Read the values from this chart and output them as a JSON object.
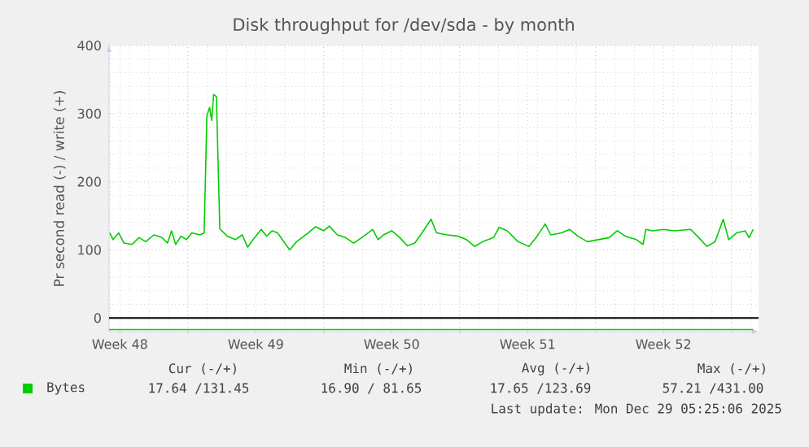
{
  "chart_data": {
    "type": "line",
    "title": "Disk throughput for /dev/sda - by month",
    "ylabel": "Pr second read (-) / write (+)",
    "xlim": [
      "2025-11-26T22:35",
      "2025-12-30T09:35"
    ],
    "ylim": [
      -20,
      400
    ],
    "xticks": [
      {
        "value": "2025-12-01",
        "label": null
      },
      {
        "value": "2025-12-08",
        "label": null
      },
      {
        "value": "2025-12-15",
        "label": null
      },
      {
        "value": "2025-12-22",
        "label": null
      },
      {
        "value": "2025-12-29",
        "label": null
      },
      {
        "value": "2025-11-27T12:00",
        "label": "Week 48"
      },
      {
        "value": "2025-12-04T12:00",
        "label": "Week 49"
      },
      {
        "value": "2025-12-11T12:00",
        "label": "Week 50"
      },
      {
        "value": "2025-12-18T12:00",
        "label": "Week 51"
      },
      {
        "value": "2025-12-25T12:00",
        "label": "Week 52"
      }
    ],
    "yticks": [
      0,
      100,
      200,
      300,
      400
    ],
    "grid": true,
    "legend": "bottom",
    "marker": "none",
    "line_style": "solid",
    "series": [
      {
        "name": "Bytes",
        "color": "#00cc00",
        "x": [
          "2025-11-26T23:24",
          "2025-11-27T03:36",
          "2025-11-27T10:20",
          "2025-11-27T17:00",
          "2025-11-28T03:05",
          "2025-11-28T11:30",
          "2025-11-28T19:55",
          "2025-11-29T06:00",
          "2025-11-29T16:05",
          "2025-11-29T22:50",
          "2025-11-30T03:50",
          "2025-11-30T08:55",
          "2025-11-30T15:35",
          "2025-11-30T22:20",
          "2025-12-01T05:00",
          "2025-12-01T15:05",
          "2025-12-01T20:10",
          "2025-12-01T23:30",
          "2025-12-02T02:55",
          "2025-12-02T05:25",
          "2025-12-02T07:55",
          "2025-12-02T11:15",
          "2025-12-02T15:30",
          "2025-12-03T00:45",
          "2025-12-03T10:50",
          "2025-12-03T19:10",
          "2025-12-04T01:55",
          "2025-12-04T08:40",
          "2025-12-04T18:45",
          "2025-12-05T01:25",
          "2025-12-05T08:10",
          "2025-12-05T14:55",
          "2025-12-06T01:00",
          "2025-12-06T06:00",
          "2025-12-06T14:25",
          "2025-12-06T21:05",
          "2025-12-07T03:50",
          "2025-12-07T13:55",
          "2025-12-08T00:00",
          "2025-12-08T06:45",
          "2025-12-08T16:50",
          "2025-12-09T02:55",
          "2025-12-09T13:00",
          "2025-12-09T23:00",
          "2025-12-10T12:30",
          "2025-12-10T19:10",
          "2025-12-11T01:55",
          "2025-12-11T12:00",
          "2025-12-11T22:05",
          "2025-12-12T07:20",
          "2025-12-12T16:35",
          "2025-12-13T02:40",
          "2025-12-13T12:45",
          "2025-12-13T19:25",
          "2025-12-14T08:55",
          "2025-12-14T22:20",
          "2025-12-15T08:25",
          "2025-12-15T18:30",
          "2025-12-16T04:35",
          "2025-12-16T18:00",
          "2025-12-17T00:45",
          "2025-12-17T10:50",
          "2025-12-18T00:15",
          "2025-12-18T13:40",
          "2025-12-18T23:45",
          "2025-12-19T09:50",
          "2025-12-19T16:35",
          "2025-12-20T06:00",
          "2025-12-20T16:05",
          "2025-12-21T02:10",
          "2025-12-21T13:55",
          "2025-12-22T03:20",
          "2025-12-22T16:50",
          "2025-12-23T02:55",
          "2025-12-23T13:00",
          "2025-12-24T02:25",
          "2025-12-24T10:50",
          "2025-12-24T14:10",
          "2025-12-24T22:35",
          "2025-12-25T12:00",
          "2025-12-26T01:25",
          "2025-12-26T21:35",
          "2025-12-27T07:40",
          "2025-12-27T17:45",
          "2025-12-28T03:50",
          "2025-12-28T13:55",
          "2025-12-28T20:40",
          "2025-12-29T06:45",
          "2025-12-29T16:50",
          "2025-12-29T21:50",
          "2025-12-30T02:55"
        ],
        "values": [
          125,
          115,
          125,
          110,
          108,
          118,
          112,
          122,
          118,
          110,
          128,
          108,
          120,
          115,
          125,
          122,
          125,
          297,
          309,
          290,
          328,
          325,
          131,
          120,
          115,
          122,
          104,
          115,
          130,
          120,
          128,
          125,
          108,
          100,
          112,
          118,
          124,
          134,
          128,
          135,
          122,
          118,
          110,
          118,
          130,
          115,
          122,
          128,
          118,
          106,
          110,
          127,
          145,
          125,
          122,
          120,
          115,
          105,
          112,
          118,
          133,
          128,
          112,
          105,
          120,
          138,
          122,
          125,
          130,
          120,
          112,
          115,
          118,
          128,
          120,
          115,
          108,
          130,
          128,
          130,
          128,
          130,
          118,
          105,
          112,
          145,
          115,
          125,
          128,
          118,
          130
        ]
      },
      {
        "color": "#00cc00",
        "x": [
          "2025-11-26T22:35",
          "2025-12-30T02:55"
        ],
        "values": [
          -17,
          -17
        ]
      }
    ],
    "ref_lines": [
      {
        "axis": "y",
        "value": 0,
        "color": "#000000"
      }
    ],
    "annotations": [
      "Cur (-/+)",
      "Min (-/+)",
      "Avg (-/+)",
      "Max (-/+)",
      "17.64 /131.45",
      "16.90 / 81.65",
      "17.65 /123.69",
      "57.21 /431.00",
      "Last update: Mon Dec 29 05:25:06 2025"
    ]
  }
}
